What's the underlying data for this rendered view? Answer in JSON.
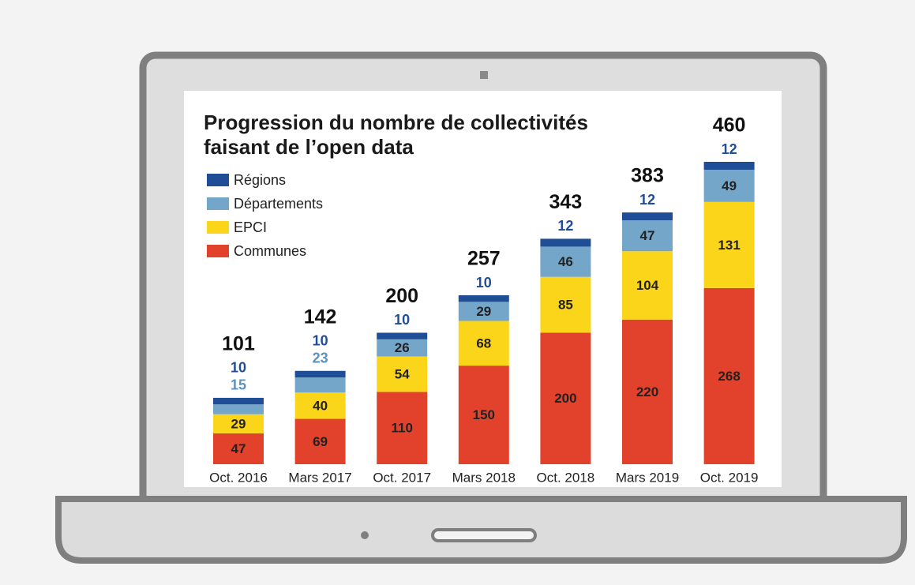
{
  "chart_data": {
    "type": "stacked-bar",
    "title": [
      "Progression du nombre de collectivités",
      "faisant de l’open data"
    ],
    "categories": [
      "Oct. 2016",
      "Mars 2017",
      "Oct. 2017",
      "Mars 2018",
      "Oct. 2018",
      "Mars 2019",
      "Oct. 2019"
    ],
    "series": [
      {
        "name": "Communes",
        "color": "#e2412b",
        "values": [
          47,
          69,
          110,
          150,
          200,
          220,
          268
        ]
      },
      {
        "name": "EPCI",
        "color": "#fbd51a",
        "values": [
          29,
          40,
          54,
          68,
          85,
          104,
          131
        ]
      },
      {
        "name": "Départements",
        "color": "#74a6c9",
        "values": [
          15,
          23,
          26,
          29,
          46,
          47,
          49
        ]
      },
      {
        "name": "Régions",
        "color": "#1f4e96",
        "values": [
          10,
          10,
          10,
          10,
          12,
          12,
          12
        ]
      }
    ],
    "totals": [
      101,
      142,
      200,
      257,
      343,
      383,
      460
    ],
    "legend": "top-left"
  }
}
